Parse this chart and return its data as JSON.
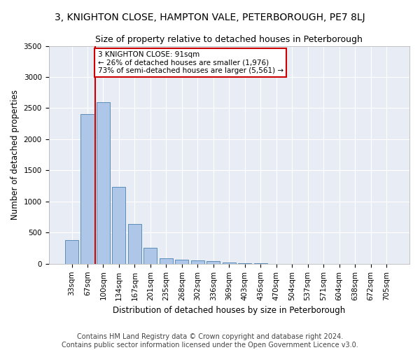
{
  "title1": "3, KNIGHTON CLOSE, HAMPTON VALE, PETERBOROUGH, PE7 8LJ",
  "title2": "Size of property relative to detached houses in Peterborough",
  "xlabel": "Distribution of detached houses by size in Peterborough",
  "ylabel": "Number of detached properties",
  "footnote": "Contains HM Land Registry data © Crown copyright and database right 2024.\nContains public sector information licensed under the Open Government Licence v3.0.",
  "bar_labels": [
    "33sqm",
    "67sqm",
    "100sqm",
    "134sqm",
    "167sqm",
    "201sqm",
    "235sqm",
    "268sqm",
    "302sqm",
    "336sqm",
    "369sqm",
    "403sqm",
    "436sqm",
    "470sqm",
    "504sqm",
    "537sqm",
    "571sqm",
    "604sqm",
    "638sqm",
    "672sqm",
    "705sqm"
  ],
  "bar_values": [
    380,
    2400,
    2590,
    1240,
    640,
    260,
    90,
    60,
    55,
    40,
    15,
    10,
    5,
    3,
    2,
    2,
    1,
    1,
    1,
    1,
    0
  ],
  "bar_color": "#aec6e8",
  "bar_edge_color": "#5b8db8",
  "background_color": "#e8ecf5",
  "grid_color": "#ffffff",
  "fig_background": "#ffffff",
  "vline_x_index": 1.5,
  "vline_color": "#cc0000",
  "annotation_text": "3 KNIGHTON CLOSE: 91sqm\n← 26% of detached houses are smaller (1,976)\n73% of semi-detached houses are larger (5,561) →",
  "annotation_box_color": "#ffffff",
  "annotation_box_edge_color": "#cc0000",
  "ylim": [
    0,
    3500
  ],
  "yticks": [
    0,
    500,
    1000,
    1500,
    2000,
    2500,
    3000,
    3500
  ],
  "title1_fontsize": 10,
  "title2_fontsize": 9,
  "xlabel_fontsize": 8.5,
  "ylabel_fontsize": 8.5,
  "tick_fontsize": 7.5,
  "annot_fontsize": 7.5,
  "footnote_fontsize": 7
}
